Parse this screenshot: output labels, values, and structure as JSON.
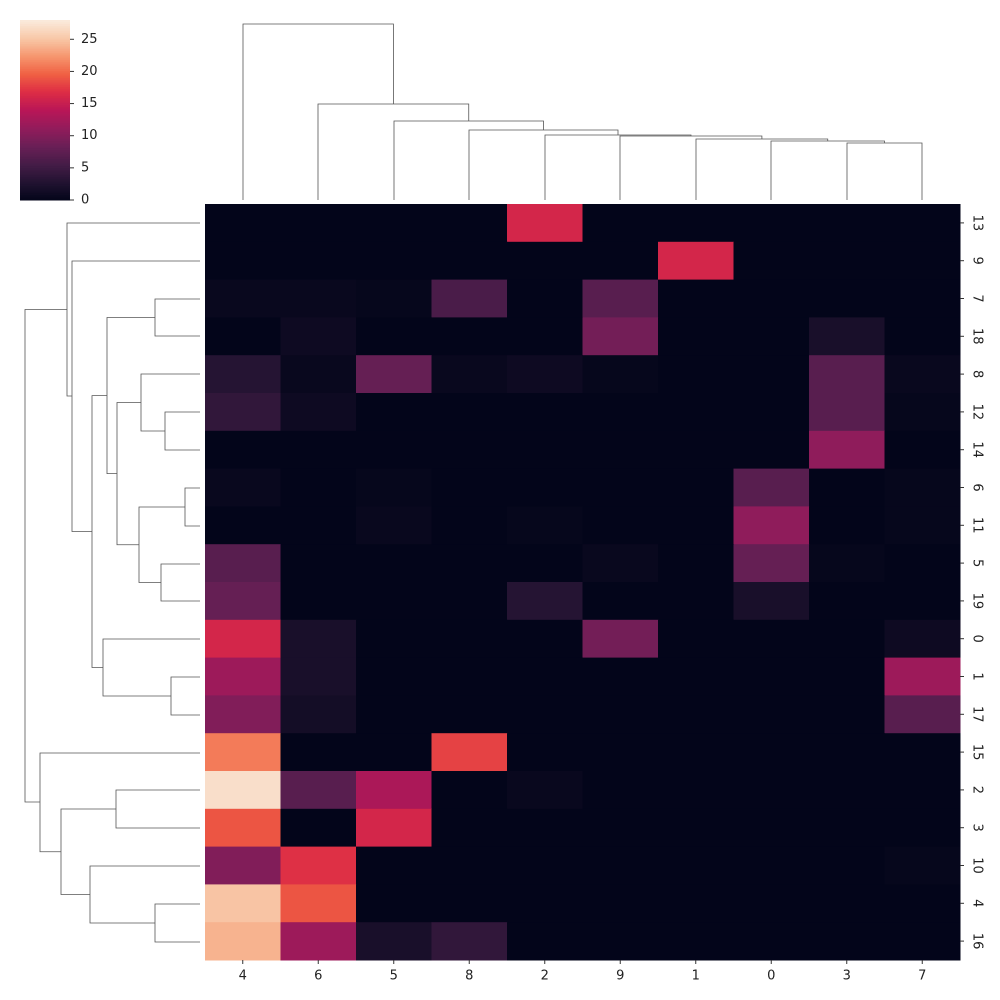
{
  "chart_data": {
    "type": "heatmap",
    "colormap": "rocket",
    "columns": [
      "4",
      "6",
      "5",
      "8",
      "2",
      "9",
      "1",
      "0",
      "3",
      "7"
    ],
    "rows": [
      "13",
      "9",
      "7",
      "18",
      "8",
      "12",
      "14",
      "6",
      "11",
      "5",
      "19",
      "0",
      "1",
      "17",
      "15",
      "2",
      "3",
      "10",
      "4",
      "16"
    ],
    "values": [
      [
        0,
        0,
        0,
        0,
        16,
        0,
        0,
        0,
        0,
        0
      ],
      [
        0,
        0,
        0,
        0,
        0,
        0,
        16,
        0,
        0,
        0
      ],
      [
        0.5,
        0.5,
        0.3,
        6,
        0,
        7,
        0,
        0,
        0,
        0
      ],
      [
        0,
        1,
        0,
        0,
        0,
        9,
        0,
        0,
        2,
        0
      ],
      [
        3,
        0.5,
        8,
        0.5,
        1,
        0.3,
        0,
        0,
        7,
        0.5
      ],
      [
        4,
        1,
        0,
        0,
        0,
        0,
        0,
        0,
        7,
        0.3
      ],
      [
        0,
        0,
        0,
        0,
        0,
        0,
        0,
        0,
        11,
        0
      ],
      [
        0.5,
        0,
        0.3,
        0,
        0,
        0,
        0,
        7,
        0,
        0.3
      ],
      [
        0,
        0,
        0.5,
        0,
        0.3,
        0,
        0,
        11,
        0,
        0.3
      ],
      [
        7,
        0,
        0,
        0,
        0,
        0.5,
        0,
        8,
        0.3,
        0
      ],
      [
        8,
        0,
        0,
        0,
        3,
        0,
        0,
        2,
        0,
        0
      ],
      [
        16,
        2,
        0,
        0,
        0,
        9,
        0,
        0,
        0,
        1
      ],
      [
        12,
        2,
        0,
        0,
        0,
        0,
        0,
        0,
        0,
        12
      ],
      [
        10,
        1.5,
        0,
        0,
        0,
        0,
        0,
        0,
        0,
        7
      ],
      [
        21,
        0,
        0,
        18,
        0,
        0,
        0,
        0,
        0,
        0
      ],
      [
        27,
        7,
        13,
        0,
        0.5,
        0,
        0,
        0,
        0,
        0
      ],
      [
        19,
        0,
        16,
        0,
        0,
        0,
        0,
        0,
        0,
        0
      ],
      [
        10,
        17,
        0,
        0,
        0,
        0,
        0,
        0,
        0,
        0.3
      ],
      [
        25,
        19,
        0,
        0,
        0,
        0,
        0,
        0,
        0,
        0
      ],
      [
        24,
        12,
        2,
        4,
        0,
        0,
        0,
        0,
        0,
        0
      ]
    ],
    "clim": [
      0,
      28
    ],
    "cticks": [
      0,
      5,
      10,
      15,
      20,
      25
    ]
  }
}
